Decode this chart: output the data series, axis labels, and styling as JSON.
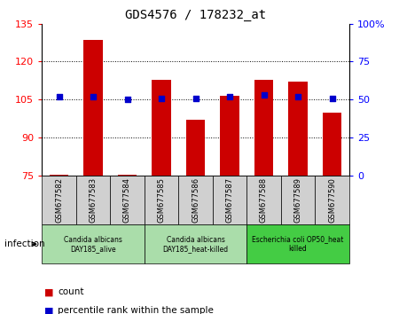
{
  "title": "GDS4576 / 178232_at",
  "samples": [
    "GSM677582",
    "GSM677583",
    "GSM677584",
    "GSM677585",
    "GSM677586",
    "GSM677587",
    "GSM677588",
    "GSM677589",
    "GSM677590"
  ],
  "counts": [
    75.5,
    128.5,
    75.5,
    113.0,
    97.0,
    106.5,
    113.0,
    112.0,
    100.0
  ],
  "percentiles": [
    52,
    52,
    50,
    51,
    51,
    52,
    53,
    52,
    51
  ],
  "ylim_left": [
    75,
    135
  ],
  "ylim_right": [
    0,
    100
  ],
  "yticks_left": [
    75,
    90,
    105,
    120,
    135
  ],
  "yticks_right": [
    0,
    25,
    50,
    75,
    100
  ],
  "ytick_labels_right": [
    "0",
    "25",
    "50",
    "75",
    "100%"
  ],
  "bar_color": "#cc0000",
  "dot_color": "#0000cc",
  "bar_width": 0.55,
  "groups": [
    {
      "label": "Candida albicans\nDAY185_alive",
      "start": 0,
      "end": 3,
      "color": "#aaddaa"
    },
    {
      "label": "Candida albicans\nDAY185_heat-killed",
      "start": 3,
      "end": 6,
      "color": "#aaddaa"
    },
    {
      "label": "Escherichia coli OP50_heat\nkilled",
      "start": 6,
      "end": 9,
      "color": "#44cc44"
    }
  ],
  "infection_label": "infection",
  "legend_items": [
    {
      "color": "#cc0000",
      "label": "count"
    },
    {
      "color": "#0000cc",
      "label": "percentile rank within the sample"
    }
  ],
  "grid_color": "black",
  "grid_linestyle": "dotted",
  "grid_linewidth": 0.7,
  "sample_box_color": "#d0d0d0",
  "title_fontsize": 10,
  "tick_fontsize": 8,
  "label_fontsize": 6,
  "group_fontsize": 5.5,
  "legend_fontsize": 7.5
}
